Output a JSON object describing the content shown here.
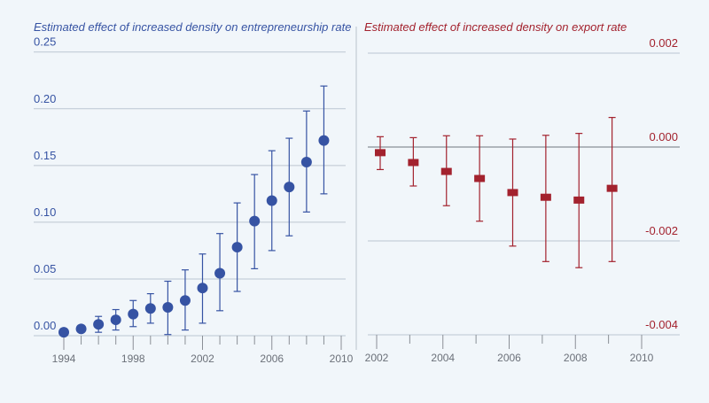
{
  "chart_data": [
    {
      "type": "scatter",
      "title": "Estimated effect of increased density on entrepreneurship rate",
      "xlabel": "",
      "ylabel": "",
      "xlim": [
        1994,
        2010
      ],
      "ylim": [
        0,
        0.25
      ],
      "x_ticks": [
        1994,
        1998,
        2002,
        2006,
        2010
      ],
      "y_ticks": [
        "0.00",
        "0.05",
        "0.10",
        "0.15",
        "0.20",
        "0.25"
      ],
      "grid": true,
      "color": "#3653a3",
      "marker": "circle",
      "x": [
        1994,
        1995,
        1996,
        1997,
        1998,
        1999,
        2000,
        2001,
        2002,
        2003,
        2004,
        2005,
        2006,
        2007,
        2008,
        2009
      ],
      "y": [
        0.003,
        0.006,
        0.01,
        0.014,
        0.019,
        0.024,
        0.025,
        0.031,
        0.042,
        0.055,
        0.078,
        0.101,
        0.119,
        0.131,
        0.153,
        0.172
      ],
      "ci_low": [
        0.003,
        0.003,
        0.003,
        0.005,
        0.008,
        0.011,
        0.001,
        0.005,
        0.011,
        0.022,
        0.039,
        0.059,
        0.075,
        0.088,
        0.109,
        0.125
      ],
      "ci_high": [
        0.003,
        0.009,
        0.017,
        0.023,
        0.031,
        0.037,
        0.048,
        0.058,
        0.072,
        0.09,
        0.117,
        0.142,
        0.163,
        0.174,
        0.198,
        0.22
      ]
    },
    {
      "type": "scatter",
      "title": "Estimated effect of increased density on export rate",
      "xlabel": "",
      "ylabel": "",
      "xlim": [
        2002,
        2010
      ],
      "ylim": [
        -0.004,
        0.002
      ],
      "x_ticks": [
        2002,
        2004,
        2006,
        2008,
        2010
      ],
      "y_ticks": [
        "0.002",
        "0.000",
        "-0.002",
        "-0.004"
      ],
      "grid": true,
      "color": "#a3222e",
      "marker": "square",
      "x": [
        2002,
        2003,
        2004,
        2005,
        2006,
        2007,
        2008,
        2009
      ],
      "y": [
        -0.00012,
        -0.00033,
        -0.00052,
        -0.00067,
        -0.00097,
        -0.00107,
        -0.00113,
        -0.00088
      ],
      "ci_low": [
        -0.00048,
        -0.00083,
        -0.00125,
        -0.00158,
        -0.00211,
        -0.00244,
        -0.00257,
        -0.00244
      ],
      "ci_high": [
        0.00022,
        0.0002,
        0.00024,
        0.00024,
        0.00017,
        0.00025,
        0.00029,
        0.00063
      ]
    }
  ]
}
